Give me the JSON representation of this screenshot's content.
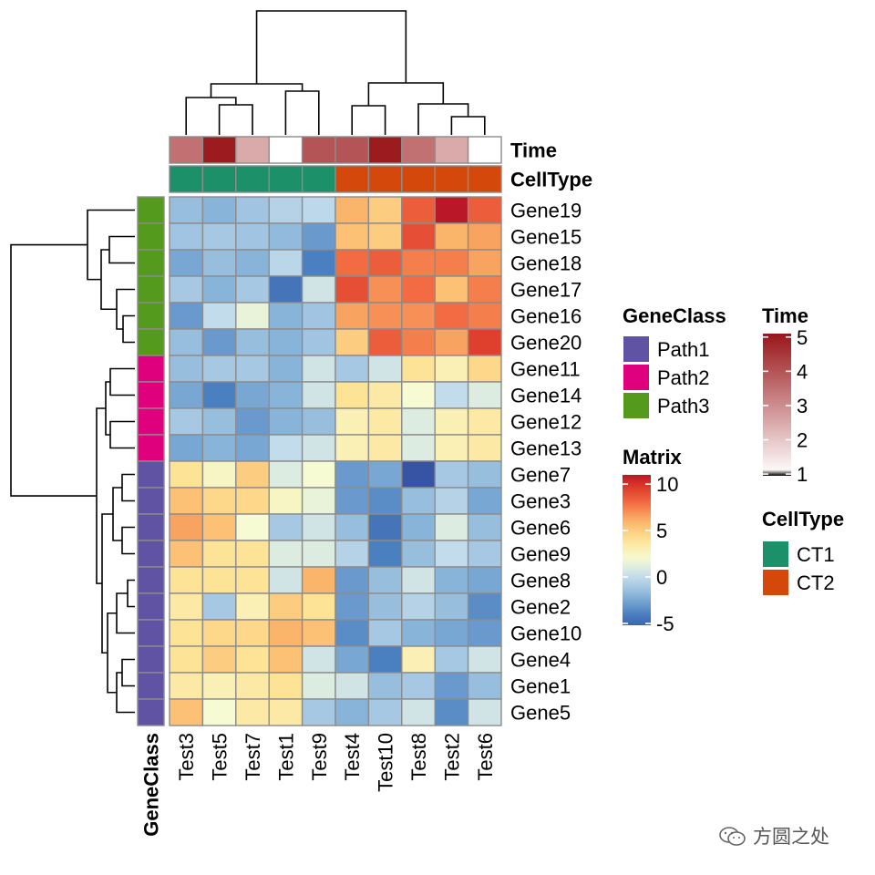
{
  "chart_data": {
    "type": "heatmap",
    "columns": [
      "Test3",
      "Test5",
      "Test7",
      "Test1",
      "Test9",
      "Test4",
      "Test10",
      "Test8",
      "Test2",
      "Test6"
    ],
    "rows": [
      "Gene19",
      "Gene15",
      "Gene18",
      "Gene17",
      "Gene16",
      "Gene20",
      "Gene11",
      "Gene14",
      "Gene12",
      "Gene13",
      "Gene7",
      "Gene3",
      "Gene6",
      "Gene9",
      "Gene8",
      "Gene2",
      "Gene10",
      "Gene4",
      "Gene1",
      "Gene5"
    ],
    "values": [
      [
        -1.5,
        -2.0,
        -1.2,
        -0.5,
        -0.2,
        6.0,
        5.0,
        8.5,
        11.0,
        8.5
      ],
      [
        -1.2,
        -1.0,
        -1.2,
        -1.7,
        -3.0,
        5.5,
        5.0,
        9.0,
        6.0,
        6.5
      ],
      [
        -2.5,
        -1.5,
        -2.0,
        -0.3,
        -4.0,
        8.0,
        8.5,
        7.5,
        7.5,
        6.5
      ],
      [
        -1.0,
        -2.0,
        -1.0,
        -4.5,
        0.5,
        9.0,
        7.0,
        8.0,
        5.5,
        7.5
      ],
      [
        -3.0,
        0.0,
        1.5,
        -2.0,
        -1.2,
        6.5,
        7.0,
        7.0,
        8.0,
        7.5
      ],
      [
        -1.5,
        -3.0,
        -1.5,
        -2.0,
        -1.2,
        5.0,
        8.5,
        7.5,
        6.5,
        9.5
      ],
      [
        -1.5,
        -1.0,
        -1.0,
        -2.0,
        0.5,
        -1.0,
        0.5,
        4.0,
        3.0,
        4.5
      ],
      [
        -2.5,
        -4.0,
        -2.5,
        -2.0,
        0.5,
        4.0,
        3.5,
        2.0,
        0.0,
        1.0
      ],
      [
        -1.0,
        -1.5,
        -3.0,
        -2.0,
        -1.5,
        3.0,
        3.5,
        1.0,
        3.0,
        3.5
      ],
      [
        -2.5,
        -2.0,
        -2.5,
        0.0,
        0.5,
        3.0,
        3.5,
        1.0,
        3.0,
        3.5
      ],
      [
        4.0,
        2.5,
        5.0,
        1.0,
        2.0,
        -3.0,
        -2.5,
        -6.0,
        -1.0,
        -1.5
      ],
      [
        5.5,
        4.5,
        4.5,
        2.5,
        1.5,
        -3.0,
        -3.5,
        -1.5,
        -0.5,
        -2.5
      ],
      [
        6.5,
        5.5,
        2.0,
        -1.0,
        0.5,
        -1.5,
        -4.5,
        -2.0,
        1.0,
        -1.5
      ],
      [
        5.5,
        4.0,
        4.0,
        1.0,
        1.0,
        -0.5,
        -4.0,
        -1.5,
        0.0,
        -1.0
      ],
      [
        4.0,
        4.0,
        4.0,
        0.5,
        6.0,
        -3.0,
        -1.5,
        0.5,
        -2.0,
        -2.5
      ],
      [
        3.5,
        -1.0,
        3.0,
        5.0,
        4.0,
        -3.0,
        -1.5,
        -0.5,
        -1.5,
        -3.5
      ],
      [
        4.0,
        4.5,
        4.5,
        6.0,
        5.5,
        -3.5,
        -1.0,
        -2.0,
        -2.5,
        -3.0
      ],
      [
        4.0,
        5.0,
        4.0,
        5.5,
        0.5,
        -2.5,
        -4.0,
        3.0,
        -1.0,
        0.5
      ],
      [
        3.5,
        3.0,
        3.5,
        4.0,
        1.0,
        0.5,
        -1.5,
        -1.0,
        -3.0,
        -1.5
      ],
      [
        5.5,
        2.0,
        3.5,
        3.5,
        -1.0,
        -2.0,
        -1.0,
        0.5,
        -3.5,
        0.5
      ]
    ],
    "matrix_legend": {
      "title": "Matrix",
      "ticks": [
        10,
        5,
        0,
        -5
      ],
      "range": [
        -5,
        11
      ]
    },
    "time": {
      "title": "Time",
      "values": [
        3.5,
        5.0,
        2.5,
        1.0,
        4.0,
        4.0,
        5.0,
        3.5,
        2.5,
        1.0
      ],
      "ticks": [
        5,
        4,
        3,
        2,
        1
      ],
      "range": [
        1,
        5
      ],
      "color_low": "#ffffff",
      "color_high": "#9b1b1e"
    },
    "cell_type": {
      "title": "CellType",
      "values": [
        "CT1",
        "CT1",
        "CT1",
        "CT1",
        "CT1",
        "CT2",
        "CT2",
        "CT2",
        "CT2",
        "CT2"
      ],
      "legend": [
        {
          "label": "CT1",
          "color": "#1b9069"
        },
        {
          "label": "CT2",
          "color": "#d4490b"
        }
      ]
    },
    "gene_class": {
      "title": "GeneClass",
      "values": [
        "Path3",
        "Path3",
        "Path3",
        "Path3",
        "Path3",
        "Path3",
        "Path2",
        "Path2",
        "Path2",
        "Path2",
        "Path1",
        "Path1",
        "Path1",
        "Path1",
        "Path1",
        "Path1",
        "Path1",
        "Path1",
        "Path1",
        "Path1"
      ],
      "legend": [
        {
          "label": "Path1",
          "color": "#6153a4"
        },
        {
          "label": "Path2",
          "color": "#df007e"
        },
        {
          "label": "Path3",
          "color": "#549a1c"
        }
      ]
    },
    "palette_stops": [
      "#3653a4",
      "#4a7fc0",
      "#89b4d9",
      "#c3dcec",
      "#f6fbd3",
      "#fde395",
      "#fbb56a",
      "#f36b43",
      "#d83226",
      "#ba1728"
    ],
    "palette_values": [
      -6,
      -4,
      -2,
      0,
      2,
      4,
      6,
      8,
      10,
      11
    ],
    "cell_border_color": "#8c8c8c"
  },
  "watermark": {
    "text": "方圆之处",
    "icon": "wechat-icon"
  }
}
